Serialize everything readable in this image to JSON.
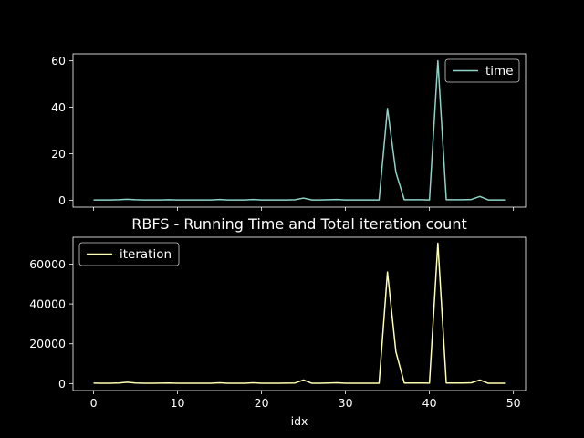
{
  "chart_data": [
    {
      "type": "line",
      "title": "",
      "xlabel": "",
      "ylabel": "",
      "xlim": [
        -2.45,
        51.45
      ],
      "ylim": [
        -3.0,
        63.0
      ],
      "xticks": [
        0,
        10,
        20,
        30,
        40,
        50
      ],
      "xtick_labels_shown": false,
      "yticks": [
        0,
        20,
        40,
        60
      ],
      "ytick_labels": [
        "0",
        "20",
        "40",
        "60"
      ],
      "legend": "upper right",
      "series": [
        {
          "name": "time",
          "color": "#8dd3c7",
          "x": [
            0,
            1,
            2,
            3,
            4,
            5,
            6,
            7,
            8,
            9,
            10,
            11,
            12,
            13,
            14,
            15,
            16,
            17,
            18,
            19,
            20,
            21,
            22,
            23,
            24,
            25,
            26,
            27,
            28,
            29,
            30,
            31,
            32,
            33,
            34,
            35,
            36,
            37,
            38,
            39,
            40,
            41,
            42,
            43,
            44,
            45,
            46,
            47,
            48,
            49
          ],
          "values": [
            0.1,
            0.1,
            0.1,
            0.2,
            0.4,
            0.2,
            0.1,
            0.1,
            0.1,
            0.2,
            0.1,
            0.1,
            0.1,
            0.1,
            0.1,
            0.3,
            0.1,
            0.1,
            0.1,
            0.3,
            0.1,
            0.1,
            0.1,
            0.1,
            0.2,
            0.9,
            0.1,
            0.1,
            0.2,
            0.3,
            0.1,
            0.1,
            0.1,
            0.1,
            0.1,
            39.5,
            12.0,
            0.2,
            0.2,
            0.2,
            0.1,
            60.0,
            0.2,
            0.2,
            0.2,
            0.3,
            1.6,
            0.1,
            0.1,
            0.1
          ]
        }
      ]
    },
    {
      "type": "line",
      "title": "RBFS - Running Time and Total iteration count",
      "xlabel": "idx",
      "ylabel": "",
      "xlim": [
        -2.45,
        51.45
      ],
      "ylim": [
        -3500,
        73500
      ],
      "xticks": [
        0,
        10,
        20,
        30,
        40,
        50
      ],
      "xtick_labels": [
        "0",
        "10",
        "20",
        "30",
        "40",
        "50"
      ],
      "yticks": [
        0,
        20000,
        40000,
        60000
      ],
      "ytick_labels": [
        "0",
        "20000",
        "40000",
        "60000"
      ],
      "legend": "upper left",
      "series": [
        {
          "name": "iteration",
          "color": "#ffffb3",
          "x": [
            0,
            1,
            2,
            3,
            4,
            5,
            6,
            7,
            8,
            9,
            10,
            11,
            12,
            13,
            14,
            15,
            16,
            17,
            18,
            19,
            20,
            21,
            22,
            23,
            24,
            25,
            26,
            27,
            28,
            29,
            30,
            31,
            32,
            33,
            34,
            35,
            36,
            37,
            38,
            39,
            40,
            41,
            42,
            43,
            44,
            45,
            46,
            47,
            48,
            49
          ],
          "values": [
            200,
            150,
            150,
            300,
            700,
            300,
            150,
            150,
            200,
            300,
            150,
            150,
            150,
            150,
            150,
            400,
            150,
            150,
            150,
            400,
            150,
            150,
            150,
            200,
            300,
            1800,
            150,
            150,
            300,
            400,
            150,
            150,
            150,
            150,
            150,
            56000,
            16000,
            300,
            300,
            300,
            200,
            70500,
            300,
            300,
            300,
            400,
            1800,
            150,
            150,
            150
          ]
        }
      ]
    }
  ]
}
